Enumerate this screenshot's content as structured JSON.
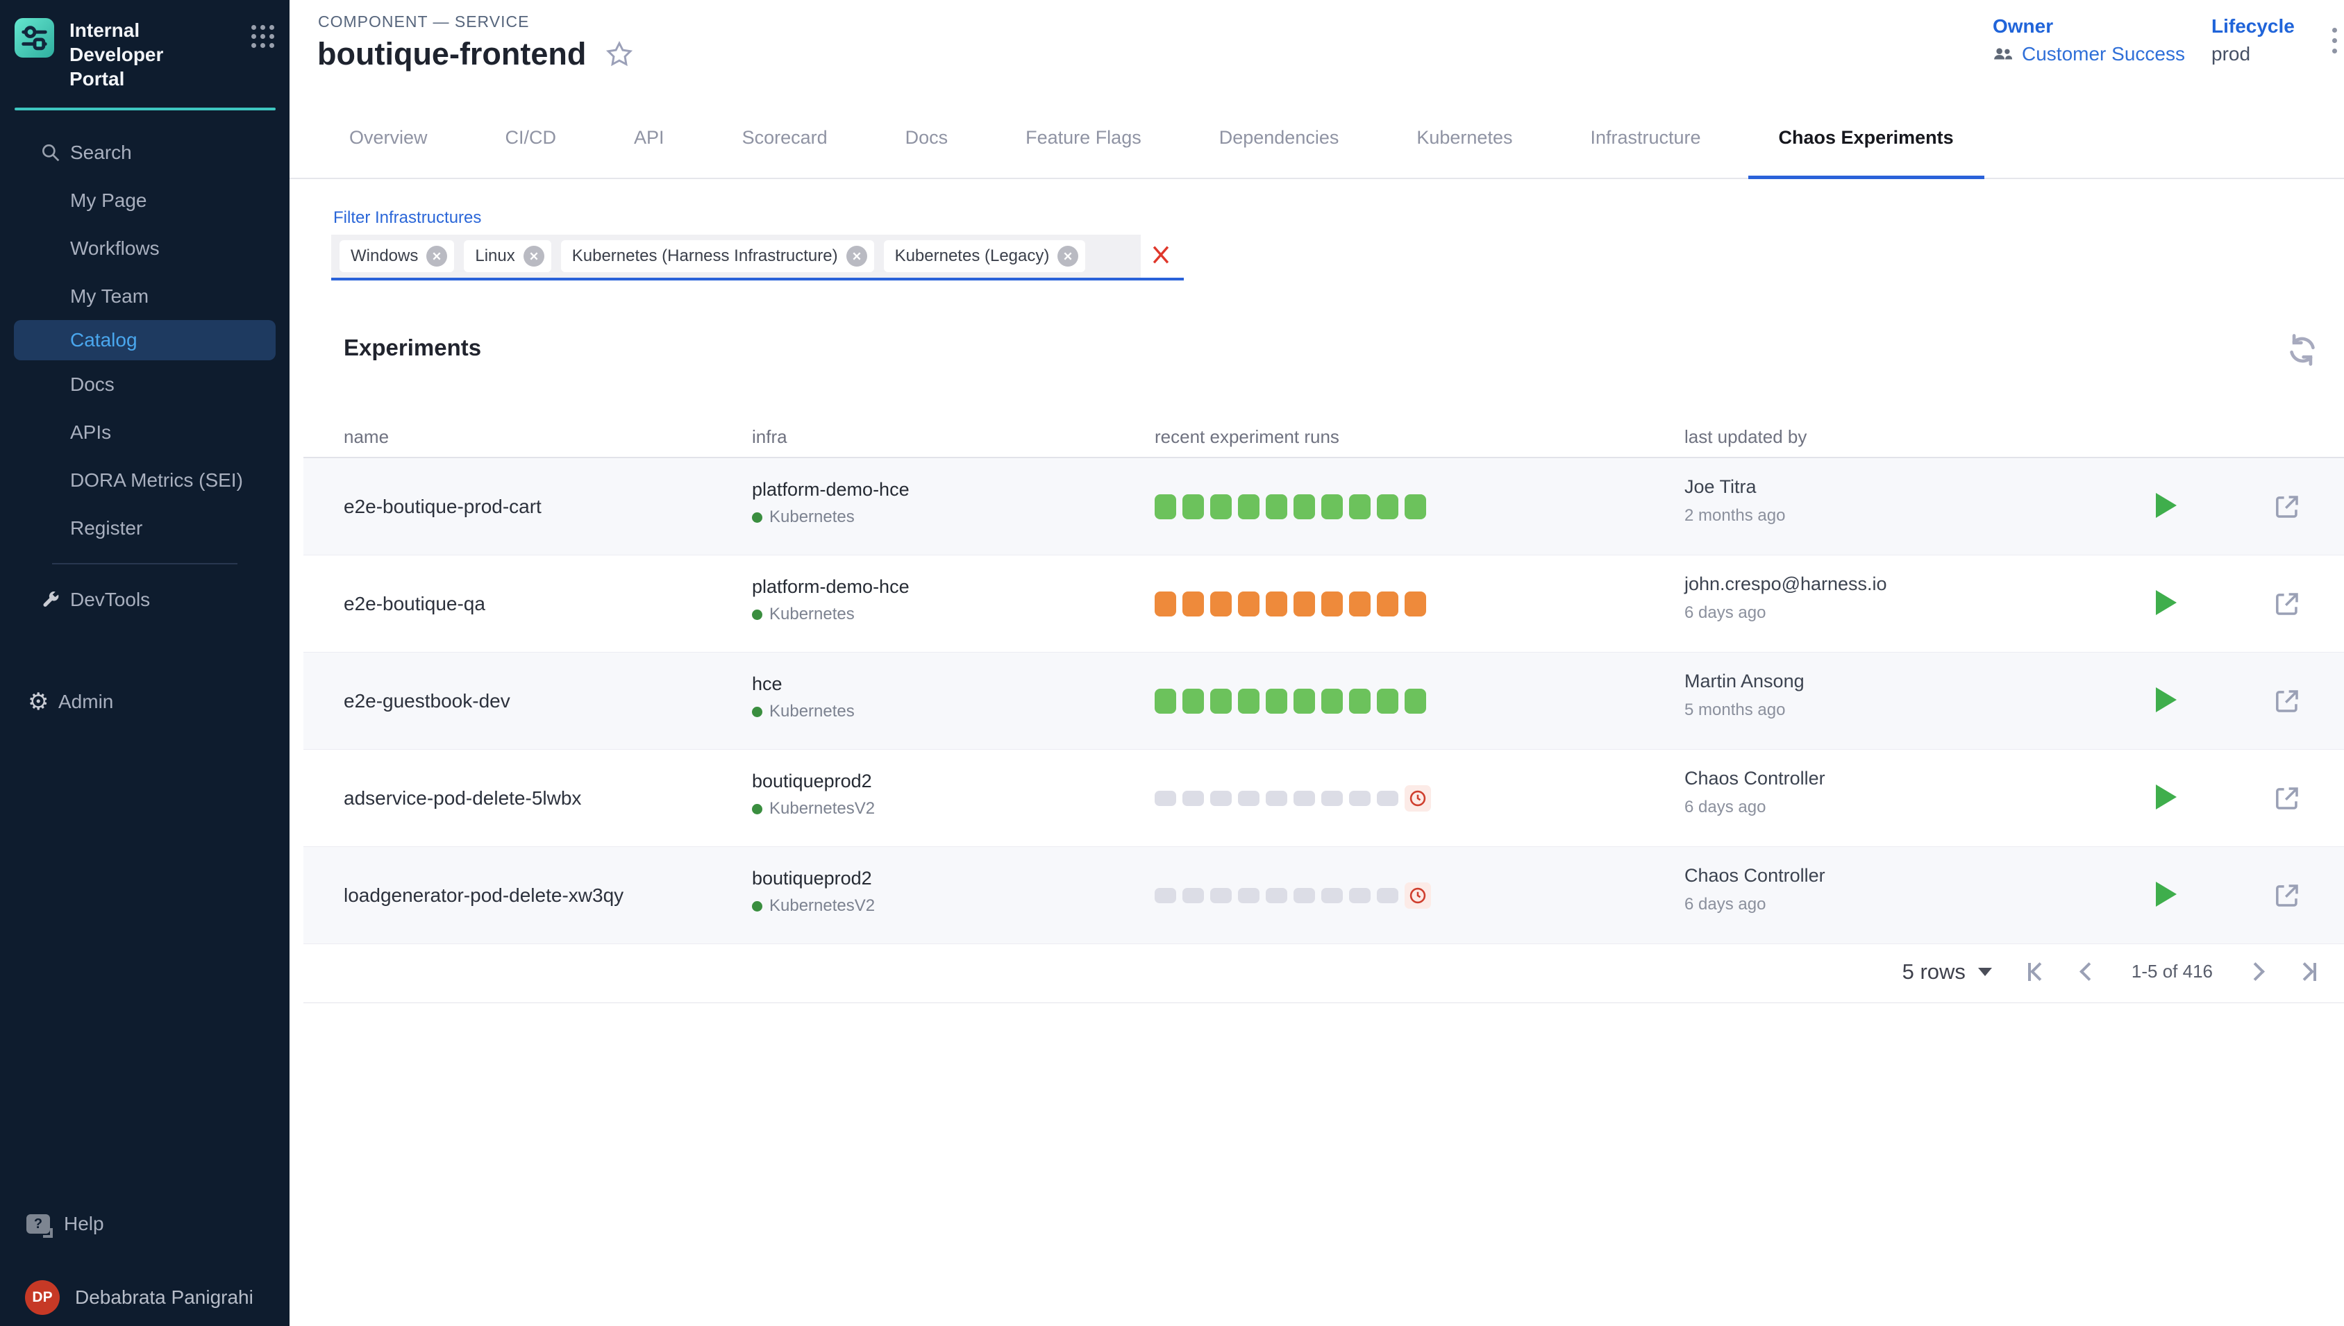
{
  "sidebar": {
    "app_title": "Internal Developer Portal",
    "items": [
      "Search",
      "My Page",
      "Workflows",
      "My Team",
      "Catalog",
      "Docs",
      "APIs",
      "DORA Metrics (SEI)",
      "Register"
    ],
    "active_item": "Catalog",
    "devtools_label": "DevTools",
    "admin_label": "Admin",
    "help_label": "Help",
    "user_initials": "DP",
    "user_name": "Debabrata Panigrahi"
  },
  "header": {
    "kind": "COMPONENT — SERVICE",
    "title": "boutique-frontend",
    "owner_label": "Owner",
    "owner_value": "Customer Success",
    "lifecycle_label": "Lifecycle",
    "lifecycle_value": "prod"
  },
  "tabs": [
    "Overview",
    "CI/CD",
    "API",
    "Scorecard",
    "Docs",
    "Feature Flags",
    "Dependencies",
    "Kubernetes",
    "Infrastructure",
    "Chaos Experiments"
  ],
  "active_tab": "Chaos Experiments",
  "filter": {
    "label": "Filter Infrastructures",
    "chips": [
      "Windows",
      "Linux",
      "Kubernetes (Harness Infrastructure)",
      "Kubernetes (Legacy)"
    ]
  },
  "experiments": {
    "title": "Experiments",
    "columns": [
      "name",
      "infra",
      "recent experiment runs",
      "last updated by"
    ],
    "rows": [
      {
        "name": "e2e-boutique-prod-cart",
        "infra": "platform-demo-hce",
        "infra_type": "Kubernetes",
        "runs": {
          "status": "passed",
          "color": "green",
          "blocks": 10,
          "trailing_clock": false
        },
        "updated_by": "Joe Titra",
        "updated_when": "2 months ago"
      },
      {
        "name": "e2e-boutique-qa",
        "infra": "platform-demo-hce",
        "infra_type": "Kubernetes",
        "runs": {
          "status": "failed",
          "color": "orange",
          "blocks": 10,
          "trailing_clock": false
        },
        "updated_by": "john.crespo@harness.io",
        "updated_when": "6 days ago"
      },
      {
        "name": "e2e-guestbook-dev",
        "infra": "hce",
        "infra_type": "Kubernetes",
        "runs": {
          "status": "passed",
          "color": "green",
          "blocks": 10,
          "trailing_clock": false
        },
        "updated_by": "Martin Ansong",
        "updated_when": "5 months ago"
      },
      {
        "name": "adservice-pod-delete-5lwbx",
        "infra": "boutiqueprod2",
        "infra_type": "KubernetesV2",
        "runs": {
          "status": "pending",
          "color": "gray",
          "blocks": 9,
          "trailing_clock": true
        },
        "updated_by": "Chaos Controller",
        "updated_when": "6 days ago"
      },
      {
        "name": "loadgenerator-pod-delete-xw3qy",
        "infra": "boutiqueprod2",
        "infra_type": "KubernetesV2",
        "runs": {
          "status": "pending",
          "color": "gray",
          "blocks": 9,
          "trailing_clock": true
        },
        "updated_by": "Chaos Controller",
        "updated_when": "6 days ago"
      }
    ],
    "pagination": {
      "rows_per_page": "5 rows",
      "range": "1-5 of 416"
    }
  },
  "colors": {
    "accent_blue": "#2a62d9",
    "link_blue": "#2064d9",
    "sidebar_bg": "#0e1c2e",
    "sidebar_active_bg": "#1e3a60",
    "sidebar_active_text": "#4aa7ee",
    "teal_accent": "#3ec6c0",
    "run_green": "#6cc25c",
    "run_orange": "#ee8a3b",
    "run_gray": "#dcdde6",
    "status_red": "#cf3e2d",
    "play_green": "#3fae4c",
    "avatar_red": "#c63926"
  }
}
